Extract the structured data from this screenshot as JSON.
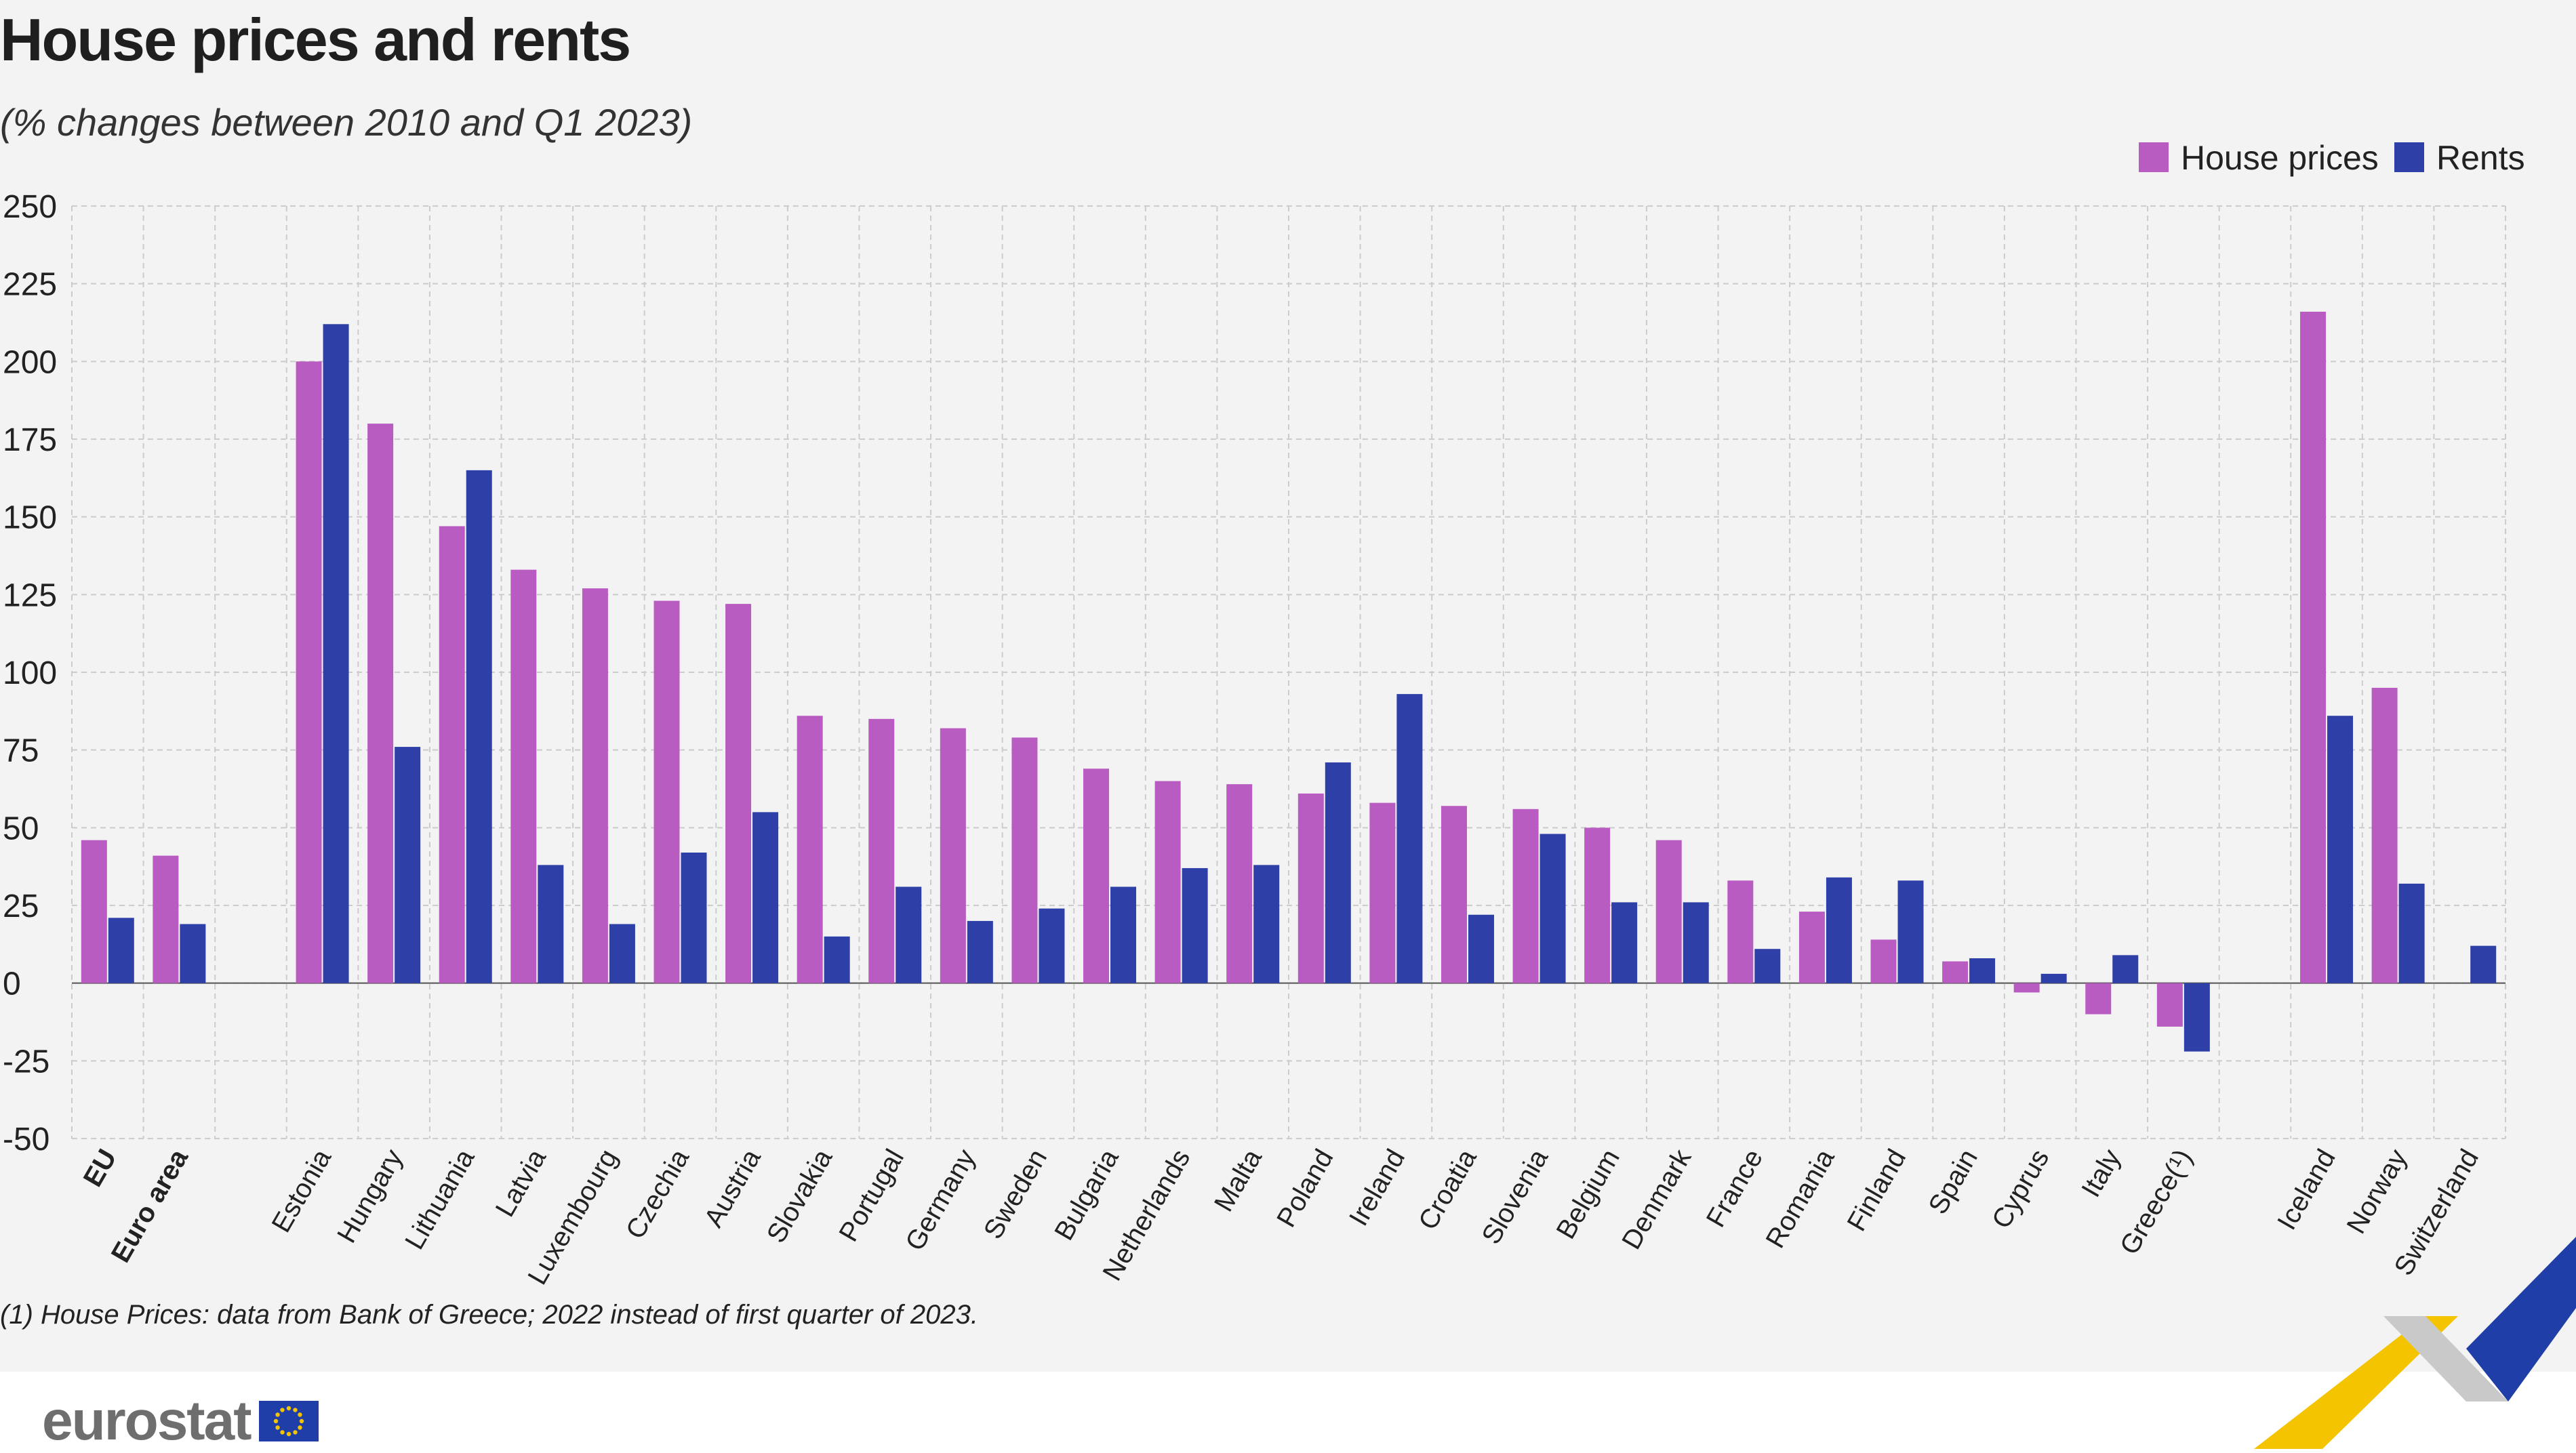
{
  "header": {
    "title": "House prices and rents",
    "subtitle": "(% changes between 2010 and Q1 2023)"
  },
  "footnote": "(1) House Prices: data from Bank of Greece; 2022 instead of first quarter of 2023.",
  "brand": {
    "name": "eurostat"
  },
  "colors": {
    "house_prices": "#b85cc2",
    "rents": "#2e3fa8",
    "grid": "#cccccc",
    "plot_bg": "#f3f3f3"
  },
  "chart_data": {
    "type": "bar",
    "title": "House prices and rents",
    "subtitle": "(% changes between 2010 and Q1 2023)",
    "xlabel": "",
    "ylabel": "",
    "ylim": [
      -50,
      250
    ],
    "yticks": [
      250,
      225,
      200,
      175,
      150,
      125,
      100,
      75,
      50,
      25,
      0,
      -25,
      -50
    ],
    "grid": true,
    "legend_position": "top-right",
    "categories": [
      "EU",
      "Euro area",
      "Estonia",
      "Hungary",
      "Lithuania",
      "Latvia",
      "Luxembourg",
      "Czechia",
      "Austria",
      "Slovakia",
      "Portugal",
      "Germany",
      "Sweden",
      "Bulgaria",
      "Netherlands",
      "Malta",
      "Poland",
      "Ireland",
      "Croatia",
      "Slovenia",
      "Belgium",
      "Denmark",
      "France",
      "Romania",
      "Finland",
      "Spain",
      "Cyprus",
      "Italy",
      "Greece(¹)",
      "Iceland",
      "Norway",
      "Switzerland"
    ],
    "bold_categories": [
      "EU",
      "Euro area"
    ],
    "series": [
      {
        "name": "House prices",
        "color": "#b85cc2",
        "values": [
          46,
          41,
          200,
          180,
          147,
          133,
          127,
          123,
          122,
          86,
          85,
          82,
          79,
          69,
          65,
          64,
          61,
          58,
          57,
          56,
          50,
          46,
          33,
          23,
          14,
          7,
          -3,
          -10,
          -14,
          216,
          95,
          null
        ]
      },
      {
        "name": "Rents",
        "color": "#2e3fa8",
        "values": [
          21,
          19,
          212,
          76,
          165,
          38,
          19,
          42,
          55,
          15,
          31,
          20,
          24,
          31,
          37,
          38,
          71,
          93,
          22,
          48,
          26,
          26,
          11,
          34,
          33,
          8,
          3,
          9,
          -22,
          86,
          32,
          12
        ]
      }
    ]
  }
}
